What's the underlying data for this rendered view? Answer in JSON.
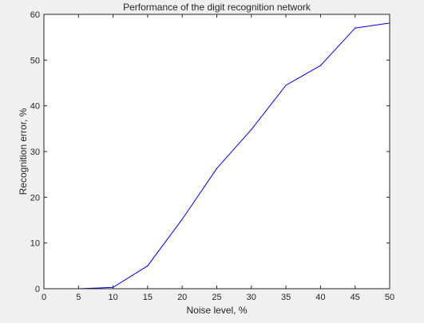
{
  "chart_data": {
    "type": "line",
    "title": "Performance of the digit recognition network",
    "xlabel": "Noise level, %",
    "ylabel": "Recognition error, %",
    "xlim": [
      0,
      50
    ],
    "ylim": [
      0,
      60
    ],
    "xticks": [
      0,
      5,
      10,
      15,
      20,
      25,
      30,
      35,
      40,
      45,
      50
    ],
    "yticks": [
      0,
      10,
      20,
      30,
      40,
      50,
      60
    ],
    "grid": false,
    "series": [
      {
        "color": "#0000ff",
        "x": [
          0,
          5,
          10,
          15,
          20,
          25,
          30,
          35,
          40,
          45,
          50
        ],
        "y": [
          0,
          0,
          0.3,
          5,
          15.2,
          26.3,
          34.8,
          44.5,
          48.8,
          57.0,
          58.1
        ]
      }
    ]
  }
}
